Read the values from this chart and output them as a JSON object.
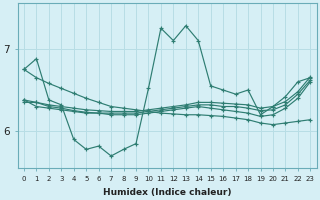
{
  "xlabel": "Humidex (Indice chaleur)",
  "ylabel": "",
  "bg_color": "#d6eff5",
  "grid_color": "#b8dde5",
  "line_color": "#2e7d72",
  "xlim": [
    -0.5,
    23.5
  ],
  "ylim": [
    5.55,
    7.55
  ],
  "yticks": [
    6,
    7
  ],
  "xticks": [
    0,
    1,
    2,
    3,
    4,
    5,
    6,
    7,
    8,
    9,
    10,
    11,
    12,
    13,
    14,
    15,
    16,
    17,
    18,
    19,
    20,
    21,
    22,
    23
  ],
  "lines": [
    [
      6.75,
      6.88,
      6.38,
      6.32,
      5.9,
      5.78,
      5.82,
      5.7,
      5.78,
      5.85,
      6.52,
      7.25,
      7.1,
      7.28,
      7.1,
      6.55,
      6.5,
      6.45,
      6.5,
      6.2,
      6.3,
      6.42,
      6.6,
      6.65
    ],
    [
      6.35,
      6.35,
      6.3,
      6.28,
      6.25,
      6.23,
      6.22,
      6.22,
      6.22,
      6.22,
      6.24,
      6.26,
      6.28,
      6.3,
      6.32,
      6.32,
      6.3,
      6.3,
      6.28,
      6.25,
      6.26,
      6.32,
      6.45,
      6.62
    ],
    [
      6.38,
      6.3,
      6.28,
      6.26,
      6.24,
      6.22,
      6.22,
      6.2,
      6.2,
      6.2,
      6.22,
      6.24,
      6.26,
      6.28,
      6.3,
      6.28,
      6.26,
      6.24,
      6.22,
      6.18,
      6.2,
      6.28,
      6.4,
      6.6
    ],
    [
      6.75,
      6.65,
      6.58,
      6.52,
      6.46,
      6.4,
      6.35,
      6.3,
      6.28,
      6.26,
      6.24,
      6.22,
      6.21,
      6.2,
      6.2,
      6.19,
      6.18,
      6.16,
      6.14,
      6.1,
      6.08,
      6.1,
      6.12,
      6.14
    ],
    [
      6.38,
      6.35,
      6.32,
      6.3,
      6.28,
      6.26,
      6.25,
      6.24,
      6.24,
      6.24,
      6.26,
      6.28,
      6.3,
      6.32,
      6.35,
      6.35,
      6.34,
      6.33,
      6.32,
      6.28,
      6.3,
      6.36,
      6.48,
      6.66
    ]
  ]
}
